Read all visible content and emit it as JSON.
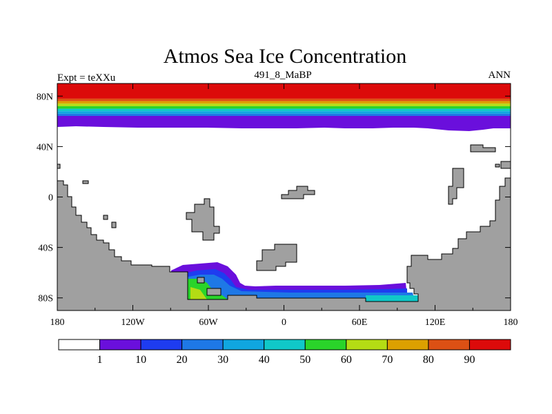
{
  "chart_data": {
    "type": "heatmap",
    "title": "Atmos Sea Ice Concentration",
    "subtitle": "491_8_MaBP",
    "left_label": "Expt = teXXu",
    "right_label": "ANN",
    "x_ticks": [
      {
        "value": -180,
        "label": "180"
      },
      {
        "value": -120,
        "label": "120W"
      },
      {
        "value": -60,
        "label": "60W"
      },
      {
        "value": 0,
        "label": "0"
      },
      {
        "value": 60,
        "label": "60E"
      },
      {
        "value": 120,
        "label": "120E"
      },
      {
        "value": 180,
        "label": "180"
      }
    ],
    "y_ticks": [
      {
        "value": 80,
        "label": "80N"
      },
      {
        "value": 40,
        "label": "40N"
      },
      {
        "value": 0,
        "label": "0"
      },
      {
        "value": -40,
        "label": "40S"
      },
      {
        "value": -80,
        "label": "80S"
      }
    ],
    "xlim": [
      -180,
      180
    ],
    "ylim": [
      -90,
      90
    ],
    "colorbar": {
      "levels": [
        "1",
        "10",
        "20",
        "30",
        "40",
        "50",
        "60",
        "70",
        "80",
        "90"
      ],
      "colors": [
        "#ffffff",
        "#6a0fdc",
        "#1e3cf0",
        "#1e78e6",
        "#10a6e0",
        "#10c8c8",
        "#2ad42a",
        "#b4dc14",
        "#dca000",
        "#dc5014",
        "#dc0a0a"
      ]
    },
    "land_color": "#a0a0a0",
    "north_bands": [
      {
        "lat": 90,
        "level": 10
      },
      {
        "lat": 78,
        "level": 9
      },
      {
        "lat": 76,
        "level": 8
      },
      {
        "lat": 74,
        "level": 7
      },
      {
        "lat": 72,
        "level": 6
      },
      {
        "lat": 70,
        "level": 5
      },
      {
        "lat": 68,
        "level": 4
      },
      {
        "lat": 66,
        "level": 3
      },
      {
        "lat": 64,
        "level": 2
      },
      {
        "lat": 62,
        "level": 1
      }
    ],
    "north_ice_edge_lat": 55,
    "south_ice": {
      "weddell": {
        "lon": [
          -70,
          -25
        ],
        "edge_lat": -55
      },
      "ross": {
        "lon": [
          -25,
          105
        ],
        "edge_lat": -71
      }
    }
  }
}
